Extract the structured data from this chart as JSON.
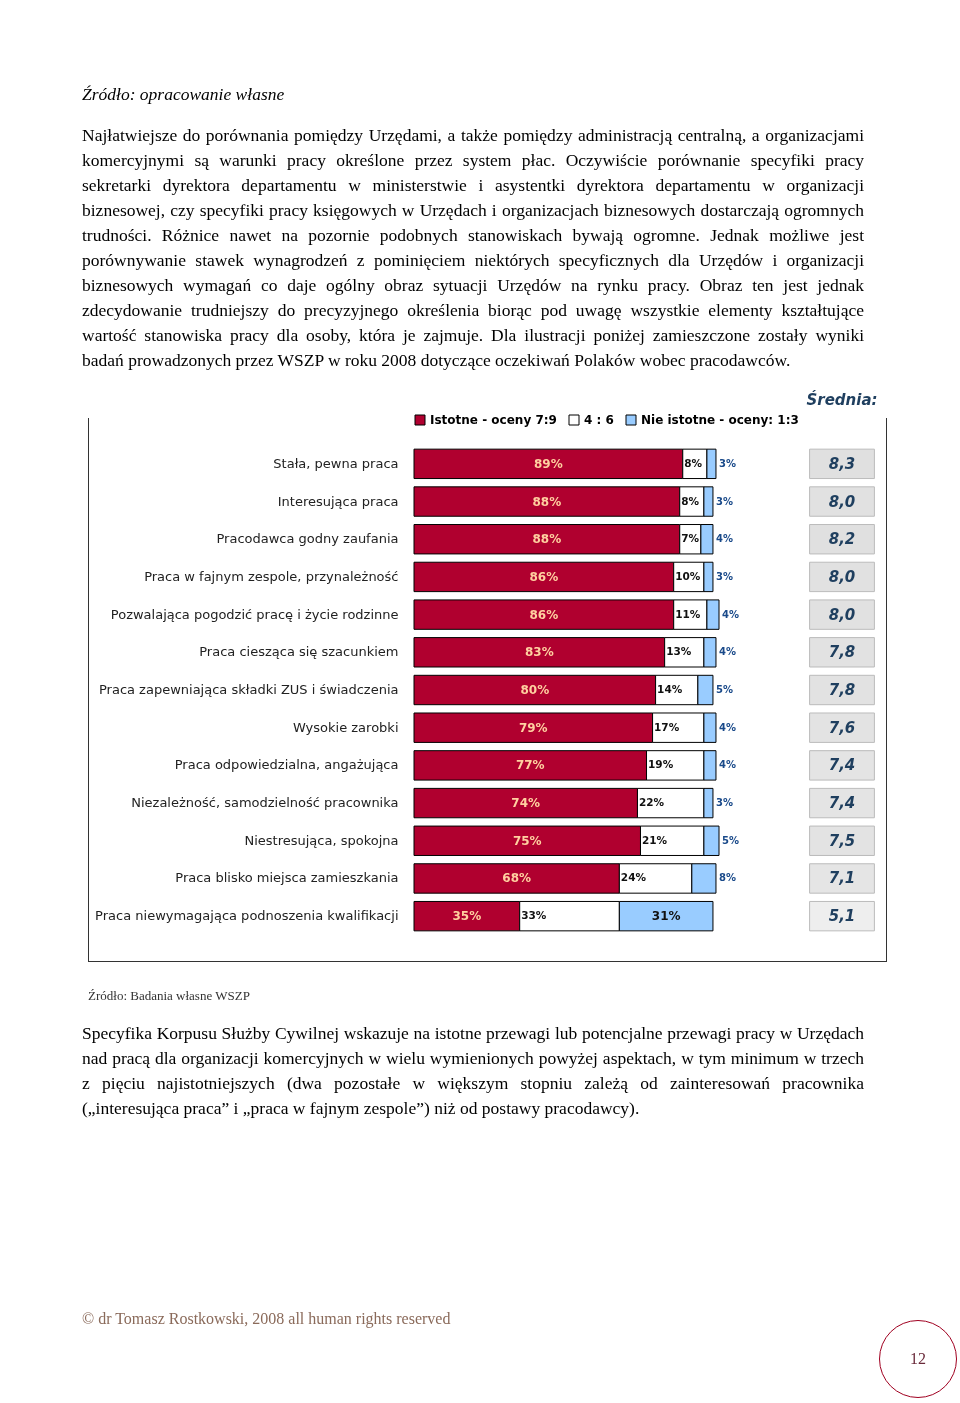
{
  "chart_data": [
    {
      "type": "bar",
      "orientation": "horizontal",
      "stacked": true,
      "legend": "top",
      "categories": [
        "Stała, pewna praca",
        "Interesująca praca",
        "Pracodawca godny zaufania",
        "Praca w fajnym zespole, przynależność",
        "Pozwalająca pogodzić pracę i życie rodzinne",
        "Praca ciesząca się szacunkiem",
        "Praca zapewniająca składki ZUS i świadczenia",
        "Wysokie zarobki",
        "Praca odpowiedzialna, angażująca",
        "Niezależność, samodzielność pracownika",
        "Niestresująca, spokojna",
        "Praca blisko miejsca zamieszkania",
        "Praca niewymagająca podnoszenia kwalifikacji"
      ],
      "series": [
        {
          "name": "Istotne - oceny 7:9",
          "color": "#b0002f",
          "values": [
            89,
            88,
            88,
            86,
            86,
            83,
            80,
            79,
            77,
            74,
            75,
            68,
            35
          ],
          "value_labels": [
            "89%",
            "88%",
            "88%",
            "86%",
            "86%",
            "83%",
            "80%",
            "79%",
            "77%",
            "74%",
            "75%",
            "68%",
            "35%"
          ]
        },
        {
          "name": "4 : 6",
          "color": "#ffffff",
          "values": [
            8,
            8,
            7,
            10,
            11,
            13,
            14,
            17,
            19,
            22,
            21,
            24,
            33
          ],
          "value_labels": [
            "8%",
            "8%",
            "7%",
            "10%",
            "11%",
            "13%",
            "14%",
            "17%",
            "19%",
            "22%",
            "21%",
            "24%",
            "33%"
          ]
        },
        {
          "name": "Nie istotne - oceny: 1:3",
          "color": "#99ccff",
          "values": [
            3,
            3,
            4,
            3,
            4,
            4,
            5,
            4,
            4,
            3,
            5,
            8,
            31
          ],
          "value_labels": [
            "3%",
            "3%",
            "4%",
            "3%",
            "4%",
            "4%",
            "5%",
            "4%",
            "4%",
            "3%",
            "5%",
            "8%",
            "31%"
          ]
        }
      ],
      "annotations": [
        "Źródło: opracowanie własne",
        "Najłatwiejsze do porównania pomiędzy Urzędami, a także pomiędzy administracją centralną, a organizacjami komercyjnymi są warunki pracy określone przez system płac. Oczywiście porównanie specyfiki pracy sekretarki dyrektora departamentu w ministerstwie i asystentki dyrektora departamentu w organizacji biznesowej, czy specyfiki pracy księgowych w Urzędach i organizacjach biznesowych dostarczają ogromnych trudności. Różnice nawet na pozornie podobnych stanowiskach bywają ogromne. Jednak możliwe jest porównywanie stawek wynagrodzeń z pominięciem niektórych specyficznych dla Urzędów i organizacji biznesowych wymagań co daje ogólny obraz sytuacji Urzędów na rynku pracy. Obraz ten jest jednak zdecydowanie trudniejszy do precyzyjnego określenia biorąc pod uwagę wszystkie elementy kształtujące wartość stanowiska pracy dla osoby, która je zajmuje. Dla ilustracji poniżej zamieszczone zostały wyniki badań prowadzonych przez WSZP w roku 2008 dotyczące oczekiwań Polaków wobec pracodawców.",
        "Źródło: Badania własne WSZP",
        "Specyfika Korpusu Służby Cywilnej wskazuje na istotne przewagi lub potencjalne przewagi pracy w Urzędach nad pracą dla organizacji komercyjnych w wielu wymienionych powyżej aspektach, w tym minimum w trzech z pięciu najistotniejszych (dwa pozostałe w większym stopniu zależą od zainteresowań pracownika („interesująca praca” i „praca w fajnym zespole”) niż od postawy pracodawcy).",
        "© dr Tomasz Rostkowski, 2008 all human rights reserved",
        "12"
      ]
    },
    {
      "type": "heatmap",
      "title": "Średnia:",
      "categories": [
        null
      ],
      "y_categories": [
        null,
        null,
        null,
        null,
        null,
        null,
        null,
        null,
        null,
        null,
        null,
        null,
        null
      ],
      "cells": [
        [
          8.3
        ],
        [
          8.0
        ],
        [
          8.2
        ],
        [
          8.0
        ],
        [
          8.0
        ],
        [
          7.8
        ],
        [
          7.8
        ],
        [
          7.6
        ],
        [
          7.4
        ],
        [
          7.4
        ],
        [
          7.5
        ],
        [
          7.1
        ],
        [
          5.1
        ]
      ],
      "cell_labels": [
        [
          "8,3"
        ],
        [
          "8,0"
        ],
        [
          "8,2"
        ],
        [
          "8,0"
        ],
        [
          "8,0"
        ],
        [
          "7,8"
        ],
        [
          "7,8"
        ],
        [
          "7,6"
        ],
        [
          "7,4"
        ],
        [
          "7,4"
        ],
        [
          "7,5"
        ],
        [
          "7,1"
        ],
        [
          "5,1"
        ]
      ]
    }
  ]
}
